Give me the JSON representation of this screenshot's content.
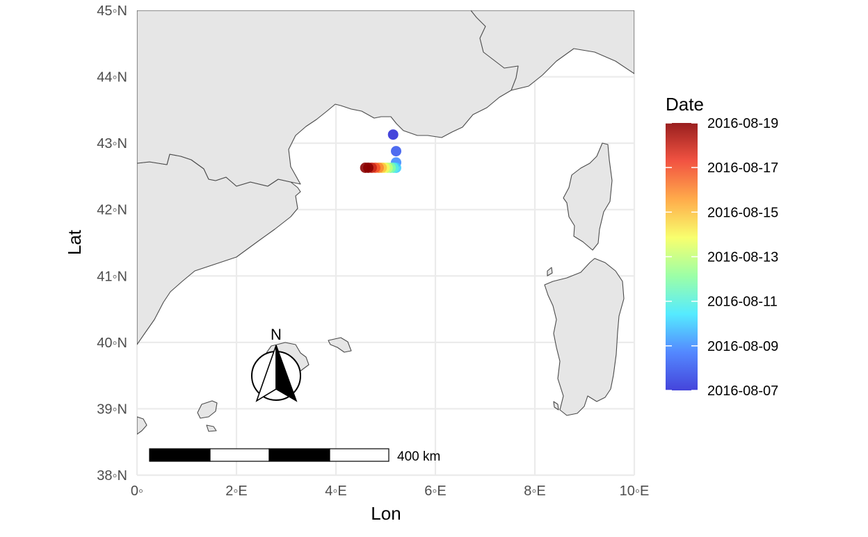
{
  "chart_data": {
    "type": "scatter",
    "title": "",
    "xlabel": "Lon",
    "ylabel": "Lat",
    "xlim": [
      0,
      10
    ],
    "ylim": [
      38,
      45
    ],
    "x_ticks": [
      0,
      2,
      4,
      6,
      8,
      10
    ],
    "x_tick_labels": [
      "0◦",
      "2◦E",
      "4◦E",
      "6◦E",
      "8◦E",
      "10◦E"
    ],
    "y_ticks": [
      38,
      39,
      40,
      41,
      42,
      43,
      44,
      45
    ],
    "y_tick_labels": [
      "38◦N",
      "39◦N",
      "40◦N",
      "41◦N",
      "42◦N",
      "43◦N",
      "44◦N",
      "45◦N"
    ],
    "grid": true,
    "points": [
      {
        "lon": 5.15,
        "lat": 43.13,
        "date": "2016-08-07"
      },
      {
        "lon": 5.21,
        "lat": 42.88,
        "date": "2016-08-08"
      },
      {
        "lon": 5.21,
        "lat": 42.71,
        "date": "2016-08-09"
      },
      {
        "lon": 5.21,
        "lat": 42.63,
        "date": "2016-08-10"
      },
      {
        "lon": 5.16,
        "lat": 42.63,
        "date": "2016-08-11"
      },
      {
        "lon": 5.1,
        "lat": 42.63,
        "date": "2016-08-12"
      },
      {
        "lon": 5.04,
        "lat": 42.63,
        "date": "2016-08-13"
      },
      {
        "lon": 4.98,
        "lat": 42.63,
        "date": "2016-08-14"
      },
      {
        "lon": 4.92,
        "lat": 42.63,
        "date": "2016-08-15"
      },
      {
        "lon": 4.86,
        "lat": 42.63,
        "date": "2016-08-16"
      },
      {
        "lon": 4.79,
        "lat": 42.63,
        "date": "2016-08-17"
      },
      {
        "lon": 4.72,
        "lat": 42.63,
        "date": "2016-08-18"
      },
      {
        "lon": 4.65,
        "lat": 42.63,
        "date": "2016-08-19"
      },
      {
        "lon": 4.59,
        "lat": 42.63,
        "date": "2016-08-19"
      }
    ],
    "legend": {
      "title": "Date",
      "placement": "right",
      "labels": [
        "2016-08-19",
        "2016-08-17",
        "2016-08-15",
        "2016-08-13",
        "2016-08-11",
        "2016-08-09",
        "2016-08-07"
      ],
      "date_range": [
        "2016-08-07",
        "2016-08-19"
      ],
      "palette": [
        "#2b2bd6",
        "#3c78ff",
        "#3ee8ff",
        "#8fff9a",
        "#f7ff5a",
        "#ffa032",
        "#f03c28",
        "#8b0000"
      ]
    },
    "north_arrow": {
      "label": "N"
    },
    "scale_bar": {
      "label": "400 km",
      "segments": 4
    }
  },
  "colors": {
    "land": "#e6e6e6",
    "coastline": "#4a4a4a",
    "grid": "#ebebeb",
    "background": "#ffffff"
  }
}
